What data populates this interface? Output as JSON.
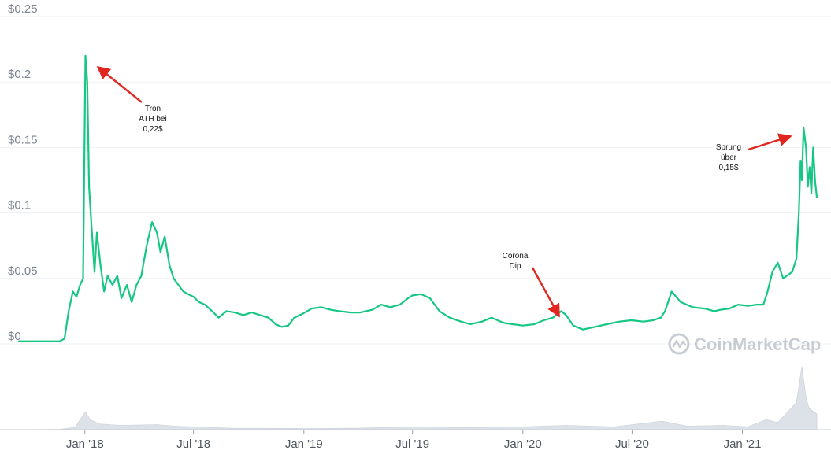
{
  "chart_data": {
    "type": "line",
    "xlabel": "",
    "ylabel": "",
    "xlim": [
      "2017-09-13",
      "2021-05-05"
    ],
    "ylim": [
      0,
      0.25
    ],
    "grid": true,
    "yticks": [
      0,
      0.05,
      0.1,
      0.15,
      0.2,
      0.25
    ],
    "ytick_labels": [
      "$0",
      "$0.05",
      "$0.1",
      "$0.15",
      "$0.2",
      "$0.25"
    ],
    "xticks": [
      "2018-01-01",
      "2018-07-01",
      "2019-01-01",
      "2019-07-01",
      "2020-01-01",
      "2020-07-01",
      "2021-01-01"
    ],
    "xtick_labels": [
      "Jan '18",
      "Jul '18",
      "Jan '19",
      "Jul '19",
      "Jan '20",
      "Jul '20",
      "Jan '21"
    ],
    "series": [
      {
        "type": "line",
        "color": "#16c784",
        "x": [
          "2017-09-13",
          "2017-10-01",
          "2017-10-20",
          "2017-11-05",
          "2017-11-20",
          "2017-11-28",
          "2017-12-05",
          "2017-12-12",
          "2017-12-18",
          "2017-12-24",
          "2017-12-29",
          "2018-01-02",
          "2018-01-05",
          "2018-01-08",
          "2018-01-12",
          "2018-01-17",
          "2018-01-21",
          "2018-01-27",
          "2018-02-02",
          "2018-02-08",
          "2018-02-16",
          "2018-02-24",
          "2018-03-03",
          "2018-03-12",
          "2018-03-20",
          "2018-03-28",
          "2018-04-05",
          "2018-04-14",
          "2018-04-23",
          "2018-05-01",
          "2018-05-07",
          "2018-05-14",
          "2018-05-22",
          "2018-05-29",
          "2018-06-06",
          "2018-06-14",
          "2018-06-22",
          "2018-07-01",
          "2018-07-10",
          "2018-07-20",
          "2018-08-01",
          "2018-08-12",
          "2018-08-25",
          "2018-09-08",
          "2018-09-22",
          "2018-10-06",
          "2018-10-20",
          "2018-11-03",
          "2018-11-15",
          "2018-11-25",
          "2018-12-06",
          "2018-12-16",
          "2018-12-30",
          "2019-01-14",
          "2019-01-30",
          "2019-02-15",
          "2019-03-01",
          "2019-03-20",
          "2019-04-05",
          "2019-04-25",
          "2019-05-10",
          "2019-05-25",
          "2019-06-10",
          "2019-06-24",
          "2019-07-01",
          "2019-07-15",
          "2019-07-30",
          "2019-08-15",
          "2019-09-01",
          "2019-09-20",
          "2019-10-05",
          "2019-10-25",
          "2019-11-10",
          "2019-11-30",
          "2019-12-15",
          "2020-01-01",
          "2020-01-20",
          "2020-02-05",
          "2020-02-20",
          "2020-03-05",
          "2020-03-13",
          "2020-03-25",
          "2020-04-10",
          "2020-04-30",
          "2020-05-20",
          "2020-06-10",
          "2020-06-30",
          "2020-07-20",
          "2020-08-05",
          "2020-08-18",
          "2020-08-25",
          "2020-09-05",
          "2020-09-20",
          "2020-10-10",
          "2020-10-30",
          "2020-11-15",
          "2020-11-25",
          "2020-12-10",
          "2020-12-25",
          "2021-01-10",
          "2021-01-25",
          "2021-02-05",
          "2021-02-12",
          "2021-02-20",
          "2021-03-01",
          "2021-03-10",
          "2021-03-25",
          "2021-04-01",
          "2021-04-05",
          "2021-04-08",
          "2021-04-10",
          "2021-04-13",
          "2021-04-17",
          "2021-04-20",
          "2021-04-23",
          "2021-04-26",
          "2021-04-29",
          "2021-05-02",
          "2021-05-05"
        ],
        "y": [
          0.002,
          0.002,
          0.002,
          0.002,
          0.002,
          0.004,
          0.025,
          0.04,
          0.036,
          0.045,
          0.05,
          0.22,
          0.2,
          0.12,
          0.09,
          0.055,
          0.085,
          0.06,
          0.04,
          0.052,
          0.045,
          0.052,
          0.035,
          0.045,
          0.032,
          0.045,
          0.052,
          0.075,
          0.093,
          0.085,
          0.07,
          0.082,
          0.06,
          0.05,
          0.045,
          0.04,
          0.038,
          0.036,
          0.032,
          0.03,
          0.025,
          0.02,
          0.025,
          0.024,
          0.022,
          0.024,
          0.022,
          0.02,
          0.015,
          0.013,
          0.014,
          0.02,
          0.023,
          0.027,
          0.028,
          0.026,
          0.025,
          0.024,
          0.024,
          0.026,
          0.03,
          0.028,
          0.03,
          0.035,
          0.037,
          0.038,
          0.035,
          0.025,
          0.02,
          0.017,
          0.015,
          0.017,
          0.02,
          0.016,
          0.015,
          0.014,
          0.015,
          0.018,
          0.02,
          0.025,
          0.022,
          0.014,
          0.011,
          0.013,
          0.015,
          0.017,
          0.018,
          0.017,
          0.018,
          0.02,
          0.025,
          0.04,
          0.032,
          0.028,
          0.027,
          0.025,
          0.026,
          0.027,
          0.03,
          0.029,
          0.03,
          0.03,
          0.04,
          0.055,
          0.062,
          0.05,
          0.055,
          0.065,
          0.1,
          0.14,
          0.125,
          0.165,
          0.15,
          0.12,
          0.135,
          0.115,
          0.15,
          0.125,
          0.112
        ]
      }
    ],
    "volume": {
      "color": "#dde1e8",
      "x": [
        "2017-09-13",
        "2017-11-20",
        "2017-12-15",
        "2018-01-02",
        "2018-01-10",
        "2018-01-25",
        "2018-03-01",
        "2018-05-01",
        "2018-06-01",
        "2018-09-01",
        "2019-01-01",
        "2019-04-01",
        "2019-07-01",
        "2019-10-01",
        "2020-01-01",
        "2020-03-13",
        "2020-06-01",
        "2020-08-20",
        "2020-10-01",
        "2020-12-01",
        "2021-01-10",
        "2021-02-10",
        "2021-03-01",
        "2021-04-01",
        "2021-04-10",
        "2021-04-17",
        "2021-04-22",
        "2021-05-05"
      ],
      "y": [
        0,
        0.5,
        3,
        25,
        14,
        8,
        6,
        7,
        5,
        2,
        1.5,
        2,
        4,
        3,
        4,
        6,
        4,
        12,
        5,
        6,
        4,
        14,
        10,
        38,
        88,
        45,
        30,
        22
      ]
    },
    "annotations": [
      "Tron",
      "ATH bei",
      "0,22$",
      "Corona",
      "Dip",
      "Sprung",
      "über",
      "0,15$"
    ]
  },
  "watermark": {
    "text": "CoinMarketCap"
  }
}
